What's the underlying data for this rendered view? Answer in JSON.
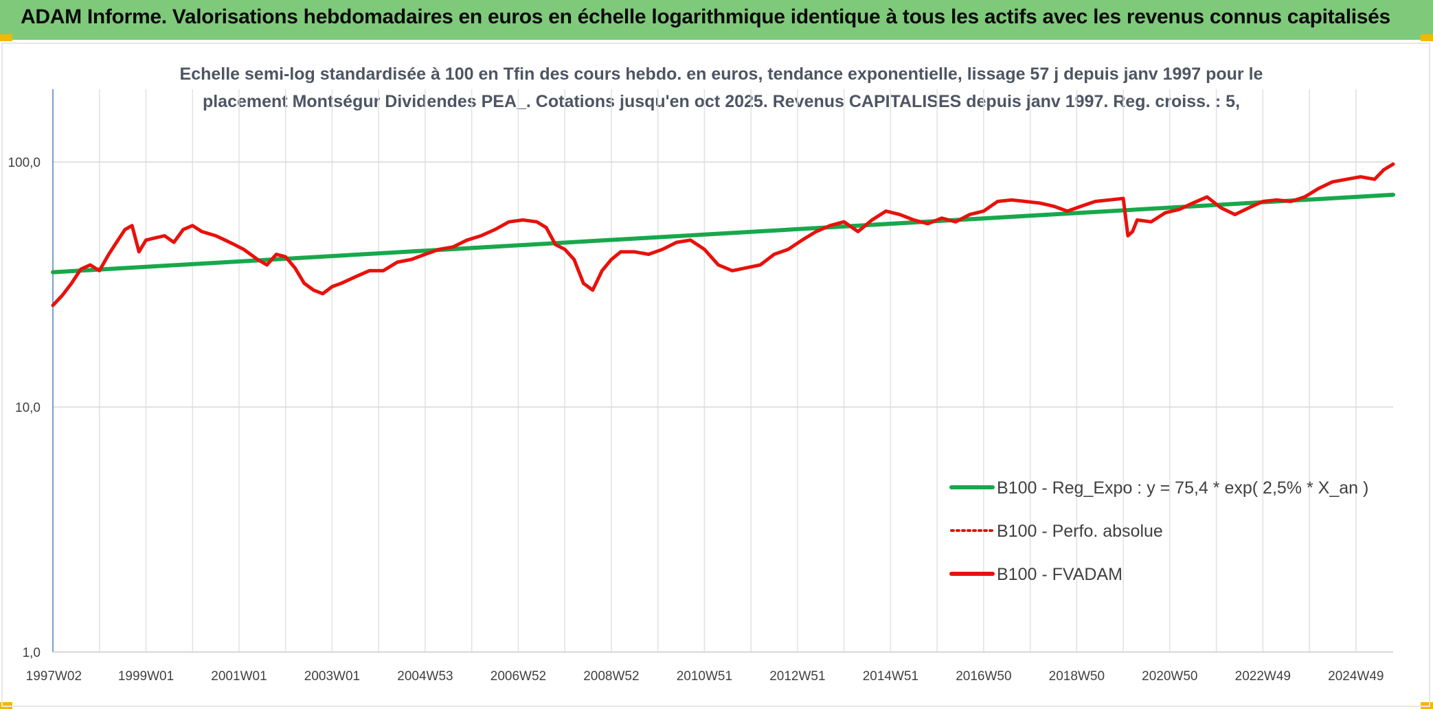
{
  "banner": {
    "title": "ADAM Informe. Valorisations hebdomadaires en euros en échelle logarithmique identique à tous les actifs avec les revenus connus capitalisés"
  },
  "chart_data": {
    "type": "line",
    "title_lines": [
      "Echelle semi-log standardisée à 100 en Tfin des cours hebdo. en euros, tendance exponentielle, lissage 57 j depuis janv 1997 pour le",
      "placement Montségur Dividendes PEA_. Cotations jusqu'en oct 2025. Revenus CAPITALISES depuis janv 1997. Reg. croiss. : 5,"
    ],
    "y_scale": "log",
    "ylim": [
      1,
      200
    ],
    "y_ticks": [
      {
        "value": 1,
        "label": "1,0"
      },
      {
        "value": 10,
        "label": "10,0"
      },
      {
        "value": 100,
        "label": "100,0"
      }
    ],
    "xlim": [
      1997.0,
      2025.8
    ],
    "x_ticks": [
      {
        "value": 1997.02,
        "label": "1997W02"
      },
      {
        "value": 1999.0,
        "label": "1999W01"
      },
      {
        "value": 2001.0,
        "label": "2001W01"
      },
      {
        "value": 2003.0,
        "label": "2003W01"
      },
      {
        "value": 2005.0,
        "label": "2004W53"
      },
      {
        "value": 2007.0,
        "label": "2006W52"
      },
      {
        "value": 2009.0,
        "label": "2008W52"
      },
      {
        "value": 2011.0,
        "label": "2010W51"
      },
      {
        "value": 2013.0,
        "label": "2012W51"
      },
      {
        "value": 2015.0,
        "label": "2014W51"
      },
      {
        "value": 2017.0,
        "label": "2016W50"
      },
      {
        "value": 2019.0,
        "label": "2018W50"
      },
      {
        "value": 2021.0,
        "label": "2020W50"
      },
      {
        "value": 2023.0,
        "label": "2022W49"
      },
      {
        "value": 2025.0,
        "label": "2024W49"
      }
    ],
    "x_minor_ticks": [
      1998.0,
      2000.0,
      2002.0,
      2004.0,
      2006.0,
      2008.0,
      2010.0,
      2012.0,
      2014.0,
      2016.0,
      2018.0,
      2020.0,
      2022.0,
      2024.0
    ],
    "legend_position": "bottom-right",
    "series": [
      {
        "name": "B100 - Reg_Expo : y = 75,4 * exp( 2,5% *  X_an )",
        "color": "#17a84b",
        "style": "solid",
        "x": [
          1997.0,
          2025.8
        ],
        "y": [
          35.5,
          73.5
        ]
      },
      {
        "name": "B100 - Perfo. absolue",
        "color": "#e8110c",
        "style": "dotted",
        "x": [],
        "y": []
      },
      {
        "name": "B100 - FVADAM",
        "color": "#e8110c",
        "style": "solid",
        "x": [
          1997.0,
          1997.2,
          1997.4,
          1997.6,
          1997.8,
          1998.0,
          1998.2,
          1998.4,
          1998.55,
          1998.7,
          1998.85,
          1999.0,
          1999.2,
          1999.4,
          1999.6,
          1999.8,
          2000.0,
          2000.2,
          2000.5,
          2000.7,
          2000.9,
          2001.1,
          2001.4,
          2001.6,
          2001.8,
          2002.0,
          2002.2,
          2002.4,
          2002.6,
          2002.8,
          2003.0,
          2003.2,
          2003.5,
          2003.8,
          2004.1,
          2004.4,
          2004.7,
          2005.0,
          2005.3,
          2005.6,
          2005.9,
          2006.2,
          2006.5,
          2006.8,
          2007.1,
          2007.4,
          2007.6,
          2007.8,
          2008.0,
          2008.2,
          2008.4,
          2008.6,
          2008.8,
          2009.0,
          2009.2,
          2009.5,
          2009.8,
          2010.1,
          2010.4,
          2010.7,
          2011.0,
          2011.3,
          2011.6,
          2011.9,
          2012.2,
          2012.5,
          2012.8,
          2013.1,
          2013.4,
          2013.7,
          2014.0,
          2014.3,
          2014.6,
          2014.9,
          2015.2,
          2015.5,
          2015.8,
          2016.1,
          2016.4,
          2016.7,
          2017.0,
          2017.3,
          2017.6,
          2017.9,
          2018.2,
          2018.5,
          2018.8,
          2019.1,
          2019.4,
          2019.7,
          2020.0,
          2020.1,
          2020.2,
          2020.3,
          2020.6,
          2020.9,
          2021.2,
          2021.5,
          2021.8,
          2022.1,
          2022.4,
          2022.7,
          2023.0,
          2023.3,
          2023.6,
          2023.9,
          2024.2,
          2024.5,
          2024.8,
          2025.1,
          2025.4,
          2025.6,
          2025.8
        ],
        "y": [
          26,
          28.5,
          32,
          36.5,
          38,
          36,
          42,
          48,
          53,
          55,
          43,
          48,
          49,
          50,
          47,
          53,
          55,
          52,
          50,
          48,
          46,
          44,
          40,
          38,
          42,
          41,
          37,
          32,
          30,
          29,
          31,
          32,
          34,
          36,
          36,
          39,
          40,
          42,
          44,
          45,
          48,
          50,
          53,
          57,
          58,
          57,
          54,
          46,
          44,
          40,
          32,
          30,
          36,
          40,
          43,
          43,
          42,
          44,
          47,
          48,
          44,
          38,
          36,
          37,
          38,
          42,
          44,
          48,
          52,
          55,
          57,
          52,
          58,
          63,
          61,
          58,
          56,
          59,
          57,
          61,
          63,
          69,
          70,
          69,
          68,
          66,
          63,
          66,
          69,
          70,
          71,
          50,
          52,
          58,
          57,
          62,
          64,
          68,
          72,
          65,
          61,
          65,
          69,
          70,
          69,
          72,
          78,
          83,
          85,
          87,
          85,
          93,
          98
        ]
      }
    ]
  }
}
